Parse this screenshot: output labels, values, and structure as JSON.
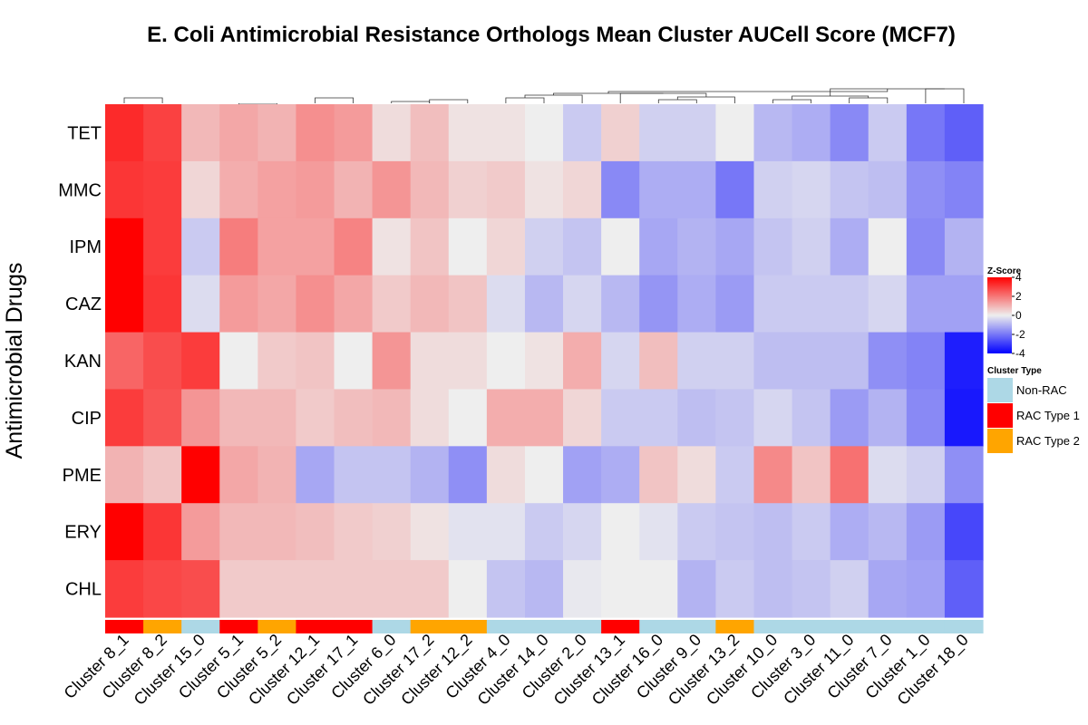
{
  "chart_data": {
    "type": "heatmap",
    "title": "E. Coli Antimicrobial Resistance Orthologs Mean Cluster AUCell Score (MCF7)",
    "ylabel": "Antimicrobial Drugs",
    "rows": [
      "TET",
      "MMC",
      "IPM",
      "CAZ",
      "KAN",
      "CIP",
      "PME",
      "ERY",
      "CHL"
    ],
    "columns": [
      "Cluster 8_1",
      "Cluster 8_2",
      "Cluster 15_0",
      "Cluster 5_1",
      "Cluster 5_2",
      "Cluster 12_1",
      "Cluster 17_1",
      "Cluster 6_0",
      "Cluster 17_2",
      "Cluster 12_2",
      "Cluster 4_0",
      "Cluster 14_0",
      "Cluster 2_0",
      "Cluster 13_1",
      "Cluster 16_0",
      "Cluster 9_0",
      "Cluster 13_2",
      "Cluster 10_0",
      "Cluster 3_0",
      "Cluster 11_0",
      "Cluster 7_0",
      "Cluster 1_0",
      "Cluster 18_0"
    ],
    "values": [
      [
        3.3,
        2.9,
        0.9,
        1.2,
        1.0,
        1.6,
        1.4,
        0.3,
        0.8,
        0.2,
        0.2,
        0.0,
        -0.6,
        0.5,
        -0.5,
        -0.5,
        0.0,
        -0.9,
        -1.1,
        -1.7,
        -0.6,
        -2.0,
        -2.4
      ],
      [
        3.1,
        3.0,
        0.4,
        1.1,
        1.3,
        1.4,
        1.0,
        1.5,
        0.9,
        0.5,
        0.6,
        0.2,
        0.4,
        -1.7,
        -1.1,
        -1.1,
        -2.0,
        -0.5,
        -0.4,
        -0.7,
        -0.8,
        -1.6,
        -1.8
      ],
      [
        4.0,
        3.0,
        -0.6,
        1.9,
        1.3,
        1.3,
        1.8,
        0.2,
        0.7,
        0.0,
        0.4,
        -0.5,
        -0.7,
        0.0,
        -1.2,
        -1.0,
        -1.2,
        -0.7,
        -0.5,
        -1.1,
        0.0,
        -1.7,
        -1.0
      ],
      [
        4.0,
        3.1,
        -0.3,
        1.4,
        1.2,
        1.6,
        1.2,
        0.6,
        0.9,
        0.7,
        -0.3,
        -0.9,
        -0.4,
        -0.9,
        -1.5,
        -1.1,
        -1.4,
        -0.6,
        -0.6,
        -0.6,
        -0.4,
        -1.3,
        -1.3
      ],
      [
        2.3,
        2.7,
        3.0,
        0.0,
        0.6,
        0.7,
        0.0,
        1.5,
        0.3,
        0.3,
        0.0,
        0.2,
        1.1,
        -0.4,
        0.8,
        -0.5,
        -0.5,
        -0.8,
        -0.8,
        -0.8,
        -1.6,
        -1.8,
        -3.5
      ],
      [
        3.0,
        2.6,
        1.5,
        0.9,
        0.9,
        0.6,
        0.8,
        0.9,
        0.3,
        0.0,
        1.1,
        1.1,
        0.4,
        -0.6,
        -0.6,
        -0.8,
        -0.7,
        -0.4,
        -0.7,
        -1.4,
        -1.0,
        -1.7,
        -3.6
      ],
      [
        1.0,
        0.7,
        4.0,
        1.2,
        1.0,
        -1.2,
        -0.7,
        -0.7,
        -1.0,
        -1.6,
        0.3,
        0.0,
        -1.3,
        -1.1,
        0.7,
        0.3,
        -0.6,
        1.7,
        0.7,
        2.1,
        -0.3,
        -0.5,
        -1.6
      ],
      [
        4.0,
        3.1,
        1.4,
        0.9,
        0.9,
        0.8,
        0.6,
        0.5,
        0.2,
        -0.2,
        -0.2,
        -0.6,
        -0.4,
        0.0,
        -0.2,
        -0.6,
        -0.7,
        -0.8,
        -0.6,
        -1.1,
        -0.9,
        -1.4,
        -2.8
      ],
      [
        3.0,
        2.8,
        2.7,
        0.6,
        0.6,
        0.6,
        0.6,
        0.6,
        0.6,
        0.0,
        -0.7,
        -0.9,
        -0.1,
        0.0,
        0.0,
        -1.0,
        -0.6,
        -0.8,
        -0.7,
        -0.5,
        -1.2,
        -1.3,
        -2.4
      ]
    ],
    "cluster_types": [
      "RAC Type 1",
      "RAC Type 2",
      "Non-RAC",
      "RAC Type 1",
      "RAC Type 2",
      "RAC Type 1",
      "RAC Type 1",
      "Non-RAC",
      "RAC Type 2",
      "RAC Type 2",
      "Non-RAC",
      "Non-RAC",
      "Non-RAC",
      "RAC Type 1",
      "Non-RAC",
      "Non-RAC",
      "RAC Type 2",
      "Non-RAC",
      "Non-RAC",
      "Non-RAC",
      "Non-RAC",
      "Non-RAC",
      "Non-RAC"
    ],
    "color_scale": {
      "title": "Z-Score",
      "min": -4,
      "max": 4,
      "ticks": [
        "4",
        "2",
        "0",
        "-2",
        "-4"
      ],
      "low_color": "#0000ff",
      "mid_color": "#eeeeee",
      "high_color": "#ff0000"
    },
    "legend": {
      "title": "Cluster Type",
      "placement": "right",
      "items": [
        {
          "label": "Non-RAC",
          "color": "#add8e6"
        },
        {
          "label": "RAC Type 1",
          "color": "#ff0000"
        },
        {
          "label": "RAC Type 2",
          "color": "#ffa500"
        }
      ]
    },
    "dendrogram": "top"
  }
}
